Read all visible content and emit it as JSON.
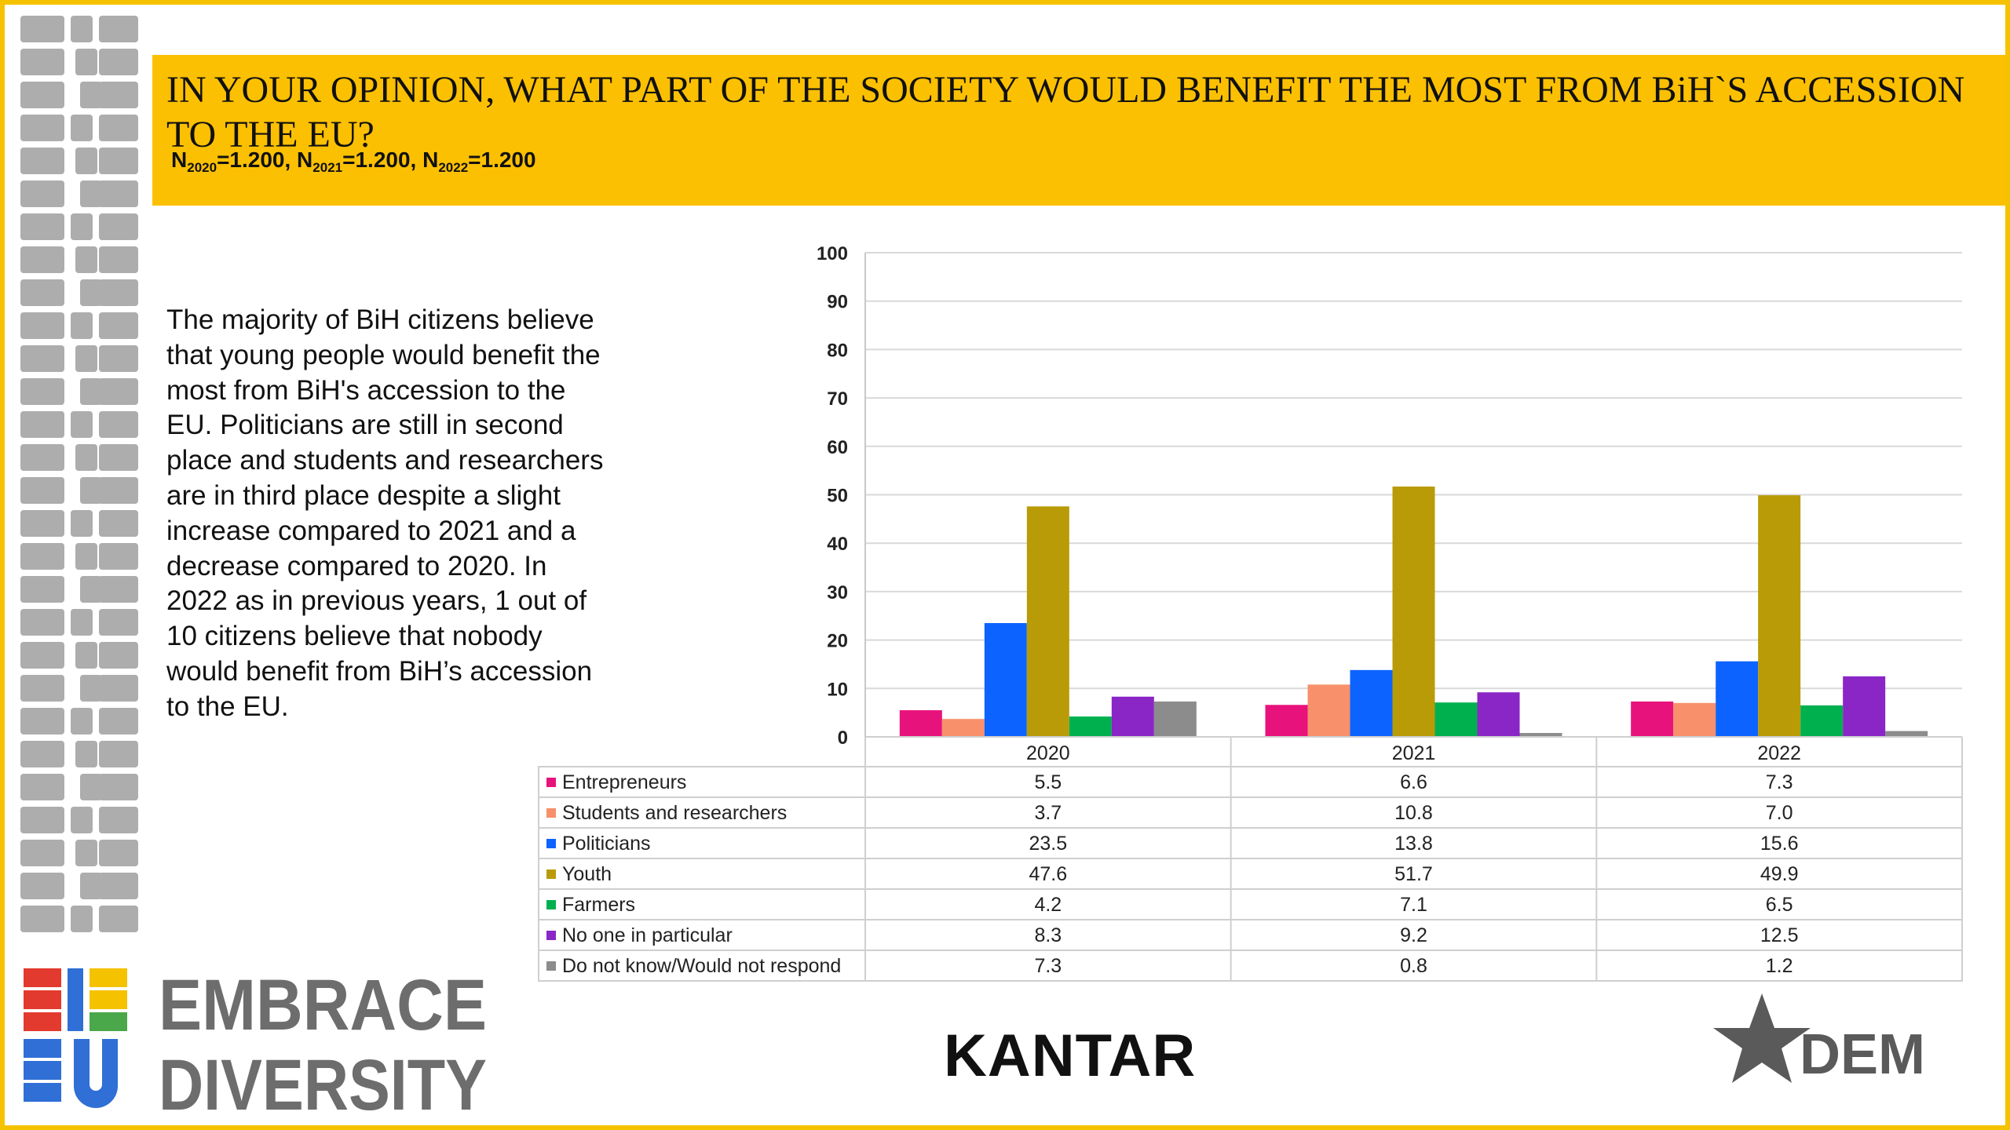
{
  "header": {
    "title": "IN YOUR OPINION, WHAT PART OF THE SOCIETY WOULD BENEFIT THE MOST FROM BiH`S ACCESSION TO THE EU?",
    "sample": [
      {
        "label": "N",
        "year": "2020",
        "value": "=1.200, "
      },
      {
        "label": "N",
        "year": "2021",
        "value": "=1.200, "
      },
      {
        "label": "N",
        "year": "2022",
        "value": "=1.200"
      }
    ]
  },
  "description": "The majority of BiH citizens believe that young people would benefit the most from BiH's accession to the EU. Politicians are still in second place and students and researchers are in third place despite a slight increase compared to 2021 and a decrease compared to 2020. In 2022 as in previous years, 1 out of 10 citizens believe that nobody would benefit from BiH’s accession to the EU.",
  "logos": {
    "embrace_line1": "EMBRACE",
    "embrace_line2": "DIVERSITY",
    "kantar": "KANTAR",
    "dem": "DEM"
  },
  "chart_data": {
    "type": "bar",
    "categories": [
      "2020",
      "2021",
      "2022"
    ],
    "ylim": [
      0,
      100
    ],
    "yticks": [
      0,
      10,
      20,
      30,
      40,
      50,
      60,
      70,
      80,
      90,
      100
    ],
    "grid": true,
    "legend": "table-below",
    "series": [
      {
        "name": "Entrepreneurs",
        "color": "#e8127c",
        "values": [
          5.5,
          6.6,
          7.3
        ],
        "labels": [
          "5.5",
          "6.6",
          "7.3"
        ]
      },
      {
        "name": "Students and researchers",
        "color": "#f7906b",
        "values": [
          3.7,
          10.8,
          7.0
        ],
        "labels": [
          "3.7",
          "10.8",
          "7.0"
        ]
      },
      {
        "name": "Politicians",
        "color": "#0d63ff",
        "values": [
          23.5,
          13.8,
          15.6
        ],
        "labels": [
          "23.5",
          "13.8",
          "15.6"
        ]
      },
      {
        "name": "Youth",
        "color": "#b99b07",
        "values": [
          47.6,
          51.7,
          49.9
        ],
        "labels": [
          "47.6",
          "51.7",
          "49.9"
        ]
      },
      {
        "name": "Farmers",
        "color": "#00b04f",
        "values": [
          4.2,
          7.1,
          6.5
        ],
        "labels": [
          "4.2",
          "7.1",
          "6.5"
        ]
      },
      {
        "name": "No one in particular",
        "color": "#8a26c6",
        "values": [
          8.3,
          9.2,
          12.5
        ],
        "labels": [
          "8.3",
          "9.2",
          "12.5"
        ]
      },
      {
        "name": "Do not know/Would not respond",
        "color": "#8c8c8c",
        "values": [
          7.3,
          0.8,
          1.2
        ],
        "labels": [
          "7.3",
          "0.8",
          "1.2"
        ]
      }
    ]
  }
}
